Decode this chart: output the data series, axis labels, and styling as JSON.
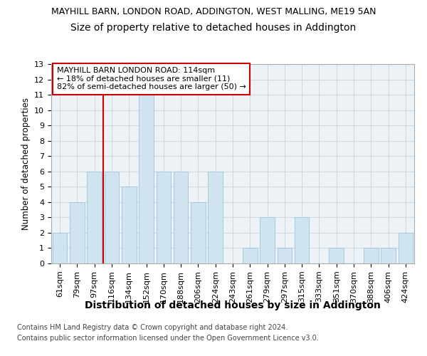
{
  "title1": "MAYHILL BARN, LONDON ROAD, ADDINGTON, WEST MALLING, ME19 5AN",
  "title2": "Size of property relative to detached houses in Addington",
  "xlabel": "Distribution of detached houses by size in Addington",
  "ylabel": "Number of detached properties",
  "categories": [
    "61sqm",
    "79sqm",
    "97sqm",
    "116sqm",
    "134sqm",
    "152sqm",
    "170sqm",
    "188sqm",
    "206sqm",
    "224sqm",
    "243sqm",
    "261sqm",
    "279sqm",
    "297sqm",
    "315sqm",
    "333sqm",
    "351sqm",
    "370sqm",
    "388sqm",
    "406sqm",
    "424sqm"
  ],
  "values": [
    2,
    4,
    6,
    6,
    5,
    11,
    6,
    6,
    4,
    6,
    0,
    1,
    3,
    1,
    3,
    0,
    1,
    0,
    1,
    1,
    2
  ],
  "bar_color": "#d0e4f0",
  "bar_edge_color": "#a8c8e0",
  "red_line_index": 3,
  "red_line_color": "#cc0000",
  "ylim": [
    0,
    13
  ],
  "yticks": [
    0,
    1,
    2,
    3,
    4,
    5,
    6,
    7,
    8,
    9,
    10,
    11,
    12,
    13
  ],
  "annotation_text": "MAYHILL BARN LONDON ROAD: 114sqm\n← 18% of detached houses are smaller (11)\n82% of semi-detached houses are larger (50) →",
  "footer1": "Contains HM Land Registry data © Crown copyright and database right 2024.",
  "footer2": "Contains public sector information licensed under the Open Government Licence v3.0.",
  "grid_color": "#d0d8e0",
  "bg_color": "#edf2f7",
  "title1_fontsize": 9,
  "title2_fontsize": 10,
  "xlabel_fontsize": 10,
  "ylabel_fontsize": 8.5,
  "tick_fontsize": 8,
  "annotation_fontsize": 8,
  "footer_fontsize": 7
}
